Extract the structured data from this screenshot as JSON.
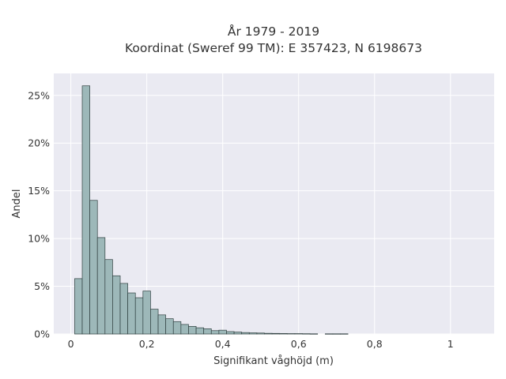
{
  "chart_data": {
    "type": "bar",
    "title_line1": "År 1979 - 2019",
    "title_line2": "Koordinat (Sweref 99 TM): E 357423, N 6198673",
    "xlabel": "Signifikant våghöjd (m)",
    "ylabel": "Andel",
    "x_ticks": [
      {
        "value": 0,
        "label": "0"
      },
      {
        "value": 0.2,
        "label": "0,2"
      },
      {
        "value": 0.4,
        "label": "0,4"
      },
      {
        "value": 0.6,
        "label": "0,6"
      },
      {
        "value": 0.8,
        "label": "0,8"
      },
      {
        "value": 1.0,
        "label": "1"
      }
    ],
    "y_ticks": [
      {
        "value": 0,
        "label": "0%"
      },
      {
        "value": 5,
        "label": "5%"
      },
      {
        "value": 10,
        "label": "10%"
      },
      {
        "value": 15,
        "label": "15%"
      },
      {
        "value": 20,
        "label": "20%"
      },
      {
        "value": 25,
        "label": "25%"
      }
    ],
    "xlim": [
      -0.045,
      1.115
    ],
    "ylim": [
      0,
      27.3
    ],
    "bin_start": 0.01,
    "bin_width": 0.02,
    "values": [
      5.8,
      26.0,
      14.0,
      10.1,
      7.8,
      6.1,
      5.3,
      4.3,
      3.8,
      4.5,
      2.6,
      2.0,
      1.6,
      1.3,
      1.0,
      0.8,
      0.65,
      0.55,
      0.35,
      0.4,
      0.25,
      0.2,
      0.15,
      0.12,
      0.1,
      0.07,
      0.06,
      0.05,
      0.04,
      0.04,
      0.03,
      0.02,
      0.0,
      0.02,
      0.02,
      0.02
    ],
    "grid": true,
    "colors": {
      "bar_fill": "#9db8b9",
      "bar_stroke": "#2f3f3f",
      "plot_bg": "#eaeaf2",
      "grid": "#ffffff"
    }
  }
}
